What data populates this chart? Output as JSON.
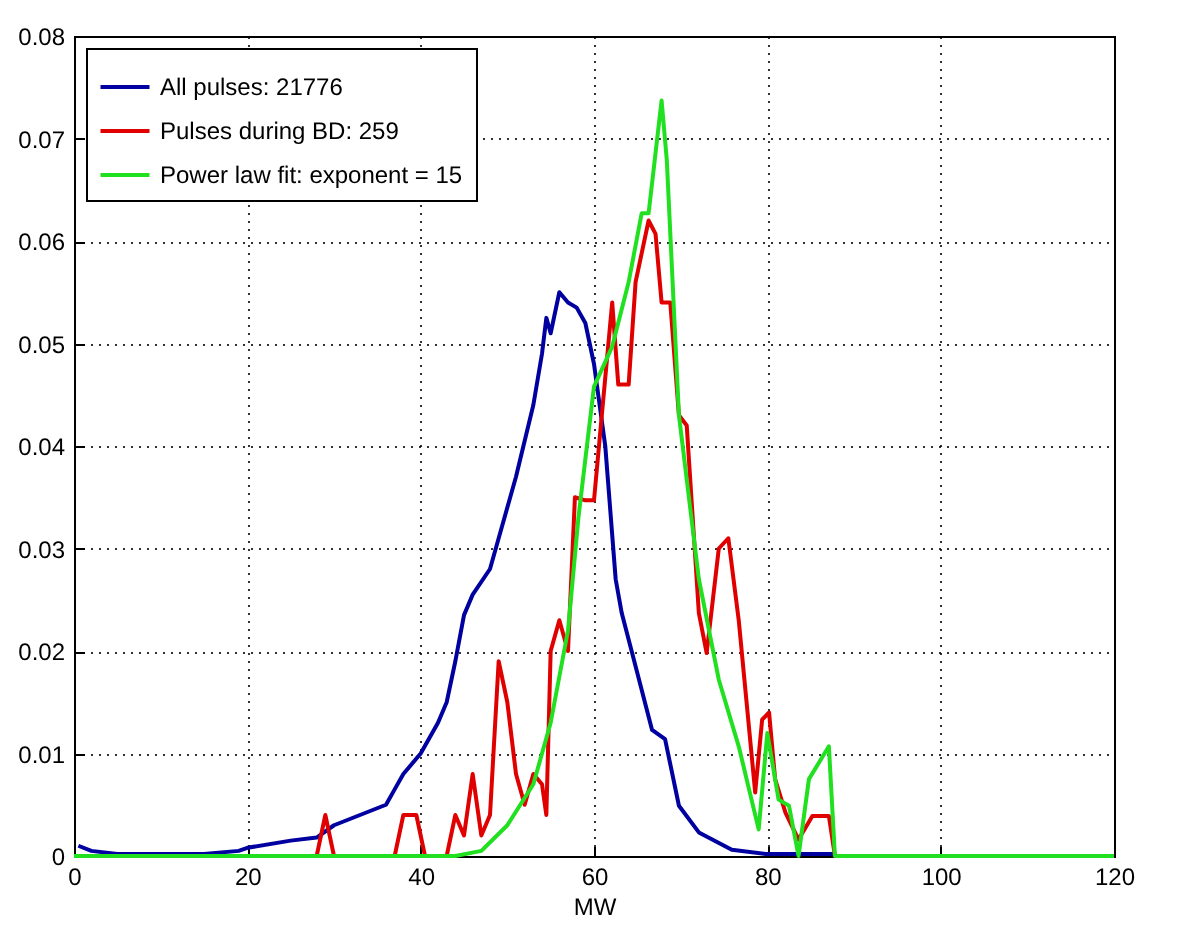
{
  "chart_data": {
    "type": "line",
    "xlabel": "MW",
    "xlim": [
      0,
      120
    ],
    "xticks": [
      0,
      20,
      40,
      60,
      80,
      100,
      120
    ],
    "ylim": [
      0,
      0.08
    ],
    "yticks": [
      0,
      0.01,
      0.02,
      0.03,
      0.04,
      0.05,
      0.06,
      0.07,
      0.08
    ],
    "grid": true,
    "legend": "top left",
    "line_style": "solid",
    "marker": "none",
    "series": [
      {
        "name": "All pulses:  21776",
        "color": "#0000a0",
        "x": [
          0.5,
          2,
          5,
          15,
          19,
          20,
          25,
          28,
          30,
          33,
          36,
          37,
          38,
          40,
          42,
          43,
          44,
          45,
          46,
          48,
          49,
          51,
          53,
          54,
          54.5,
          55,
          56,
          57,
          58,
          59,
          60,
          61.3,
          62.5,
          63.2,
          64.4,
          66.7,
          68.2,
          69.8,
          72.1,
          75.9,
          79.8,
          87.5,
          88,
          120
        ],
        "values": [
          0.001,
          0.0005,
          0.0002,
          0.0002,
          0.0005,
          0.0008,
          0.0015,
          0.0018,
          0.003,
          0.004,
          0.005,
          0.0065,
          0.008,
          0.01,
          0.013,
          0.015,
          0.019,
          0.0235,
          0.0255,
          0.028,
          0.031,
          0.037,
          0.044,
          0.049,
          0.0525,
          0.051,
          0.055,
          0.054,
          0.0535,
          0.052,
          0.048,
          0.04,
          0.027,
          0.0237,
          0.0198,
          0.0123,
          0.0114,
          0.0049,
          0.0023,
          0.0006,
          0.0002,
          0.0002,
          0,
          0
        ]
      },
      {
        "name": "Pulses during BD: 259",
        "color": "#e00000",
        "x": [
          0,
          28,
          29,
          30,
          37,
          38,
          39.5,
          40.5,
          43,
          44,
          45,
          46,
          47,
          48,
          49,
          50,
          51,
          52,
          53,
          54,
          54.5,
          55,
          56,
          57,
          57.8,
          59,
          60,
          60.9,
          62.1,
          62.8,
          64,
          64.8,
          66.3,
          67.1,
          67.8,
          68.8,
          69.8,
          70.7,
          72.1,
          73,
          74.4,
          75.5,
          76.7,
          78.6,
          79.4,
          80.2,
          80.9,
          82.1,
          83.6,
          85.2,
          87.1,
          87.8,
          120
        ],
        "values": [
          0,
          0,
          0.004,
          0,
          0,
          0.004,
          0.004,
          0,
          0,
          0.004,
          0.002,
          0.008,
          0.002,
          0.004,
          0.019,
          0.015,
          0.008,
          0.005,
          0.008,
          0.007,
          0.004,
          0.02,
          0.023,
          0.02,
          0.035,
          0.0347,
          0.0347,
          0.043,
          0.054,
          0.046,
          0.046,
          0.056,
          0.062,
          0.0607,
          0.054,
          0.054,
          0.043,
          0.042,
          0.0237,
          0.0198,
          0.03,
          0.031,
          0.023,
          0.0062,
          0.0133,
          0.014,
          0.0075,
          0.0042,
          0.0016,
          0.0039,
          0.0039,
          0,
          0
        ]
      },
      {
        "name": "Power law fit: exponent = 15",
        "color": "#20e020",
        "x": [
          0,
          44,
          47,
          50,
          53,
          55,
          57,
          58.2,
          60,
          62.1,
          64,
          65.5,
          66.3,
          67.8,
          68.4,
          69.8,
          72.1,
          74.4,
          76.7,
          79,
          80,
          81.3,
          82.5,
          83.6,
          84.8,
          87.1,
          87.8,
          120
        ],
        "values": [
          0,
          0,
          0.0005,
          0.003,
          0.007,
          0.013,
          0.022,
          0.033,
          0.0458,
          0.0497,
          0.056,
          0.0627,
          0.0627,
          0.0737,
          0.0679,
          0.043,
          0.027,
          0.0172,
          0.0107,
          0.0026,
          0.012,
          0.0055,
          0.0049,
          0,
          0.0075,
          0.0107,
          0,
          0
        ]
      }
    ]
  }
}
